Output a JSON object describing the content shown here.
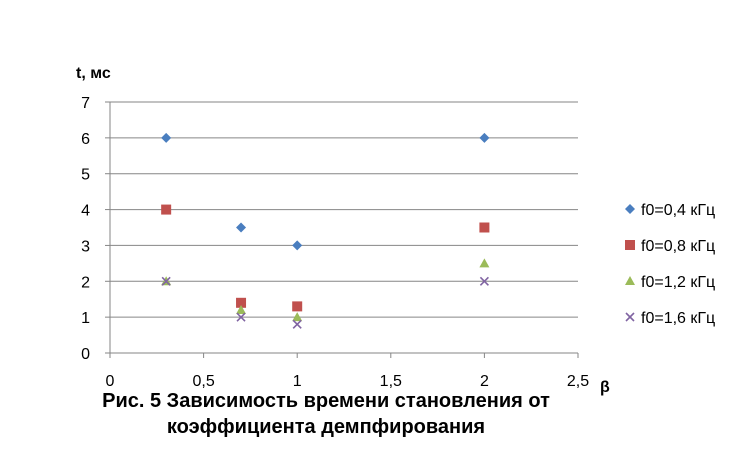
{
  "chart_data": {
    "type": "scatter",
    "title": "",
    "xlabel": "β",
    "ylabel": "t, мс",
    "xlim": [
      0,
      2.5
    ],
    "ylim": [
      0,
      7
    ],
    "x_ticks": [
      {
        "value": 0,
        "label": "0"
      },
      {
        "value": 0.5,
        "label": "0,5"
      },
      {
        "value": 1,
        "label": "1"
      },
      {
        "value": 1.5,
        "label": "1,5"
      },
      {
        "value": 2,
        "label": "2"
      },
      {
        "value": 2.5,
        "label": "2,5"
      }
    ],
    "y_ticks": [
      {
        "value": 0,
        "label": "0"
      },
      {
        "value": 1,
        "label": "1"
      },
      {
        "value": 2,
        "label": "2"
      },
      {
        "value": 3,
        "label": "3"
      },
      {
        "value": 4,
        "label": "4"
      },
      {
        "value": 5,
        "label": "5"
      },
      {
        "value": 6,
        "label": "6"
      },
      {
        "value": 7,
        "label": "7"
      }
    ],
    "grid": "horizontal",
    "legend_position": "right",
    "series": [
      {
        "name": "f0=0,4 кГц",
        "marker": "diamond",
        "color": "#4a7ebf",
        "x": [
          0.3,
          0.7,
          1.0,
          2.0
        ],
        "y": [
          6.0,
          3.5,
          3.0,
          6.0
        ]
      },
      {
        "name": "f0=0,8 кГц",
        "marker": "square",
        "color": "#c0504d",
        "x": [
          0.3,
          0.7,
          1.0,
          2.0
        ],
        "y": [
          4.0,
          1.4,
          1.3,
          3.5
        ]
      },
      {
        "name": "f0=1,2 кГц",
        "marker": "triangle",
        "color": "#9bbb59",
        "x": [
          0.3,
          0.7,
          1.0,
          2.0
        ],
        "y": [
          2.0,
          1.2,
          1.0,
          2.5
        ]
      },
      {
        "name": "f0=1,6 кГц",
        "marker": "x",
        "color": "#8064a2",
        "x": [
          0.3,
          0.7,
          1.0,
          2.0
        ],
        "y": [
          2.0,
          1.0,
          0.8,
          2.0
        ]
      }
    ]
  },
  "caption": {
    "line1": "Рис. 5 Зависимость времени становления от",
    "line2": "коэффициента демпфирования"
  }
}
